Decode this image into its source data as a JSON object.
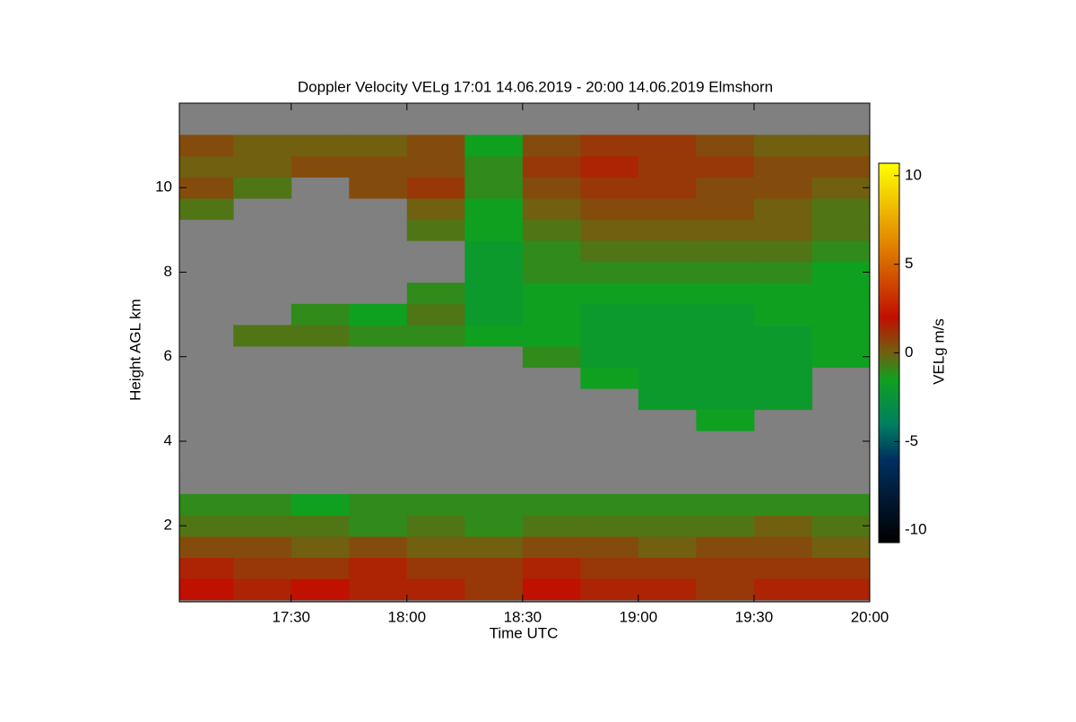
{
  "chart_data": {
    "type": "heatmap",
    "title": "Doppler Velocity VELg   17:01 14.06.2019 - 20:00 14.06.2019 Elmshorn",
    "x_label": "Time UTC",
    "y_label": "Height AGL km",
    "colorbar_label": "VELg m/s",
    "x": [
      17.125,
      17.375,
      17.625,
      17.875,
      18.125,
      18.375,
      18.625,
      18.875,
      19.125,
      19.375,
      19.625,
      19.875
    ],
    "y": [
      0.5,
      1.0,
      1.5,
      2.0,
      2.5,
      3.0,
      3.5,
      4.0,
      4.5,
      5.0,
      5.5,
      6.0,
      6.5,
      7.0,
      7.5,
      8.0,
      8.5,
      9.0,
      9.5,
      10.0,
      10.5,
      11.0,
      11.5
    ],
    "values": [
      [
        2,
        1.5,
        0.5,
        -0.5,
        -1,
        null,
        null,
        null,
        null,
        null,
        null,
        null,
        null,
        null,
        null,
        null,
        null,
        null,
        -0.5,
        0.5,
        0,
        0.5,
        null
      ],
      [
        1.5,
        1,
        0.5,
        -0.5,
        -1,
        null,
        null,
        null,
        null,
        null,
        null,
        null,
        -0.5,
        null,
        null,
        null,
        null,
        null,
        null,
        -0.5,
        0,
        0,
        null
      ],
      [
        2,
        1,
        0,
        -0.5,
        -1.5,
        null,
        null,
        null,
        null,
        null,
        null,
        null,
        -0.5,
        -1,
        null,
        null,
        null,
        null,
        null,
        null,
        0.5,
        0,
        null
      ],
      [
        1.5,
        1.5,
        0.5,
        -1,
        -1,
        null,
        null,
        null,
        null,
        null,
        null,
        null,
        -1,
        -1.5,
        null,
        null,
        null,
        null,
        null,
        0.5,
        0.5,
        0,
        null
      ],
      [
        1.5,
        1,
        0,
        -0.5,
        -1,
        null,
        null,
        null,
        null,
        null,
        null,
        null,
        -1,
        -0.5,
        -1,
        null,
        null,
        -0.5,
        0,
        1,
        0.5,
        0.5,
        null
      ],
      [
        1,
        1,
        0,
        -1,
        -1,
        null,
        null,
        null,
        null,
        null,
        null,
        null,
        -1.5,
        -2,
        -2,
        -2,
        -2,
        -1.5,
        -1.5,
        -1,
        -1,
        -1.5,
        null
      ],
      [
        2,
        1.5,
        0.5,
        -0.5,
        -1,
        null,
        null,
        null,
        null,
        null,
        null,
        -1,
        -1.5,
        -1.5,
        -1.5,
        -1,
        -1,
        -0.5,
        0,
        0.5,
        1,
        0.5,
        null
      ],
      [
        1.5,
        1,
        0.5,
        -0.5,
        -1,
        null,
        null,
        null,
        null,
        null,
        -1.5,
        -2,
        -2,
        -2,
        -1.5,
        -1,
        -0.5,
        0,
        0.5,
        1,
        1.5,
        1,
        null
      ],
      [
        1.5,
        1,
        0,
        -0.5,
        -1,
        null,
        null,
        null,
        null,
        -2,
        -2,
        -2,
        -2,
        -2,
        -1.5,
        -1,
        -0.5,
        0,
        0.5,
        1,
        1,
        1,
        null
      ],
      [
        1,
        1,
        0.5,
        -0.5,
        -1,
        null,
        null,
        null,
        -1.5,
        -2,
        -2,
        -2,
        -2,
        -2,
        -1.5,
        -1,
        -0.5,
        0,
        0.5,
        0.5,
        1,
        0.5,
        null
      ],
      [
        1.5,
        1,
        0.5,
        0,
        -1,
        null,
        null,
        null,
        null,
        -2,
        -2,
        -2,
        -2,
        -1.5,
        -1.5,
        -1,
        -0.5,
        0,
        0,
        0.5,
        0.5,
        0,
        null
      ],
      [
        1.5,
        1,
        0,
        -0.5,
        -1,
        null,
        null,
        null,
        null,
        null,
        null,
        -1.5,
        -1.5,
        -1.5,
        -1.5,
        -1.5,
        -1,
        -0.5,
        -0.5,
        0,
        0.5,
        0,
        null
      ]
    ],
    "xlim": [
      17.0167,
      20.0
    ],
    "xticks": [
      {
        "value": 17.5,
        "label": "17:30"
      },
      {
        "value": 18.0,
        "label": "18:00"
      },
      {
        "value": 18.5,
        "label": "18:30"
      },
      {
        "value": 19.0,
        "label": "19:00"
      },
      {
        "value": 19.5,
        "label": "19:30"
      },
      {
        "value": 20.0,
        "label": "20:00"
      }
    ],
    "ylim": [
      0.2,
      12.0
    ],
    "yticks": [
      2,
      4,
      6,
      8,
      10
    ],
    "zlim": [
      -10.7,
      10.7
    ],
    "zticks": [
      -10,
      -5,
      0,
      5,
      10
    ],
    "missing_color": "#808080",
    "colormap": [
      {
        "value": -10.7,
        "color": "#000000"
      },
      {
        "value": -6,
        "color": "#003060"
      },
      {
        "value": -4,
        "color": "#008060"
      },
      {
        "value": -1.5,
        "color": "#10a020"
      },
      {
        "value": 0,
        "color": "#706010"
      },
      {
        "value": 2,
        "color": "#c01000"
      },
      {
        "value": 6,
        "color": "#e08000"
      },
      {
        "value": 10.7,
        "color": "#ffff00"
      }
    ]
  }
}
